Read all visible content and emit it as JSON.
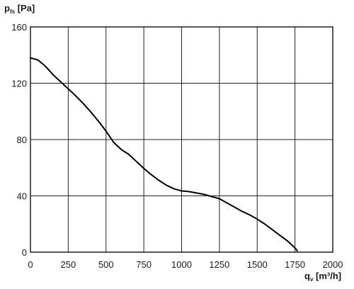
{
  "chart_data": {
    "type": "line",
    "title": "",
    "ylabel": {
      "base": "p",
      "sub": "fs",
      "unit": " [Pa]"
    },
    "xlabel": {
      "base": "q",
      "sub": "v",
      "unit": " [m³/h]"
    },
    "xlim": [
      0,
      2000
    ],
    "ylim": [
      0,
      160
    ],
    "xticks": [
      0,
      250,
      500,
      750,
      1000,
      1250,
      1500,
      1750,
      2000
    ],
    "yticks": [
      0,
      40,
      80,
      120,
      160
    ],
    "x_tick_labels": [
      "0",
      "250",
      "500",
      "750",
      "1000",
      "1250",
      "1500",
      "1750",
      "2000"
    ],
    "y_tick_labels": [
      "0",
      "40",
      "80",
      "120",
      "160"
    ],
    "grid": true,
    "series": [
      {
        "x": [
          0,
          50,
          100,
          150,
          200,
          250,
          300,
          350,
          400,
          450,
          500,
          550,
          600,
          650,
          700,
          750,
          800,
          850,
          900,
          950,
          1000,
          1050,
          1100,
          1150,
          1200,
          1250,
          1300,
          1350,
          1400,
          1450,
          1500,
          1550,
          1600,
          1650,
          1700,
          1750,
          1765
        ],
        "y": [
          138,
          136.5,
          132,
          126,
          121,
          116,
          111,
          105.5,
          99.5,
          93,
          86,
          78,
          73,
          69.5,
          64.5,
          59.5,
          55,
          51,
          47.5,
          45,
          43.5,
          43,
          42,
          41,
          39.5,
          38,
          35,
          32,
          29,
          26.5,
          23.5,
          20,
          16,
          12,
          8,
          3,
          1
        ]
      }
    ]
  }
}
